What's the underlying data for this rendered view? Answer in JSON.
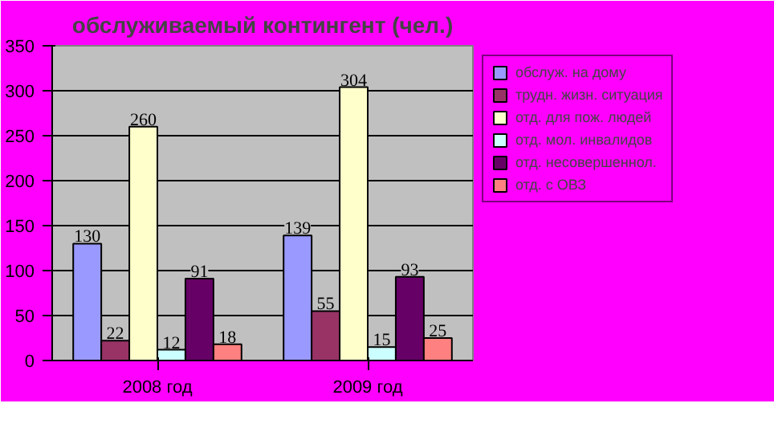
{
  "chart_data": {
    "type": "bar",
    "title": "обслуживаемый контингент (чел.)",
    "categories": [
      "2008 год",
      "2009 год"
    ],
    "series": [
      {
        "name": "обслуж. на дому",
        "color": "#9999ff",
        "values": [
          130,
          139
        ]
      },
      {
        "name": "трудн. жизн. ситуация",
        "color": "#993366",
        "values": [
          22,
          55
        ]
      },
      {
        "name": "отд. для пож. людей",
        "color": "#ffffcc",
        "values": [
          260,
          304
        ]
      },
      {
        "name": "отд. мол. инвалидов",
        "color": "#ccffff",
        "values": [
          12,
          15
        ]
      },
      {
        "name": "отд. несовершеннол.",
        "color": "#660066",
        "values": [
          91,
          93
        ]
      },
      {
        "name": "отд. с ОВЗ",
        "color": "#ff8080",
        "values": [
          18,
          25
        ]
      }
    ],
    "ylim": [
      0,
      350
    ],
    "yticks": [
      0,
      50,
      100,
      150,
      200,
      250,
      300,
      350
    ],
    "grid": "y",
    "legend": "right",
    "data_labels": true
  }
}
